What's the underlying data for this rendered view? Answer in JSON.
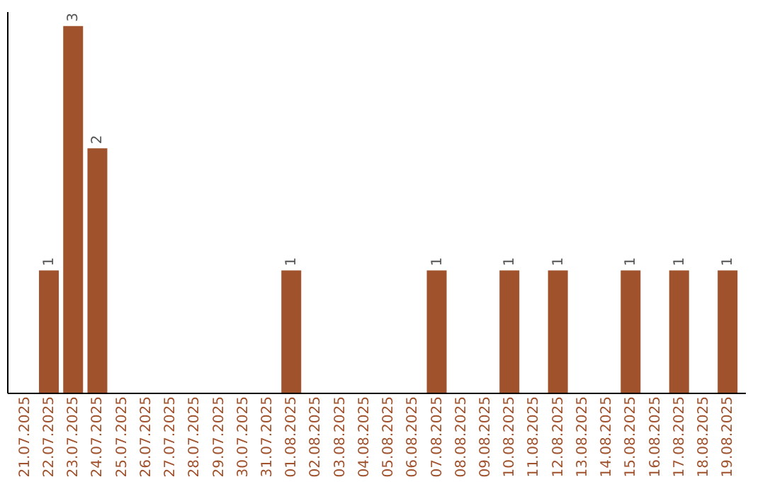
{
  "chart_data": {
    "type": "bar",
    "categories": [
      "21.07.2025",
      "22.07.2025",
      "23.07.2025",
      "24.07.2025",
      "25.07.2025",
      "26.07.2025",
      "27.07.2025",
      "28.07.2025",
      "29.07.2025",
      "30.07.2025",
      "31.07.2025",
      "01.08.2025",
      "02.08.2025",
      "03.08.2025",
      "04.08.2025",
      "05.08.2025",
      "06.08.2025",
      "07.08.2025",
      "08.08.2025",
      "09.08.2025",
      "10.08.2025",
      "11.08.2025",
      "12.08.2025",
      "13.08.2025",
      "14.08.2025",
      "15.08.2025",
      "16.08.2025",
      "17.08.2025",
      "18.08.2025",
      "19.08.2025"
    ],
    "values": [
      0,
      1,
      3,
      2,
      0,
      0,
      0,
      0,
      0,
      0,
      0,
      1,
      0,
      0,
      0,
      0,
      0,
      1,
      0,
      0,
      1,
      0,
      1,
      0,
      0,
      1,
      0,
      1,
      0,
      1
    ],
    "value_labels": [
      null,
      "1",
      "3",
      "2",
      null,
      null,
      null,
      null,
      null,
      null,
      null,
      "1",
      null,
      null,
      null,
      null,
      null,
      "1",
      null,
      null,
      "1",
      null,
      "1",
      null,
      null,
      "1",
      null,
      "1",
      null,
      "1"
    ],
    "color": "#a0522d",
    "tick_labels": "x",
    "grid": false
  }
}
